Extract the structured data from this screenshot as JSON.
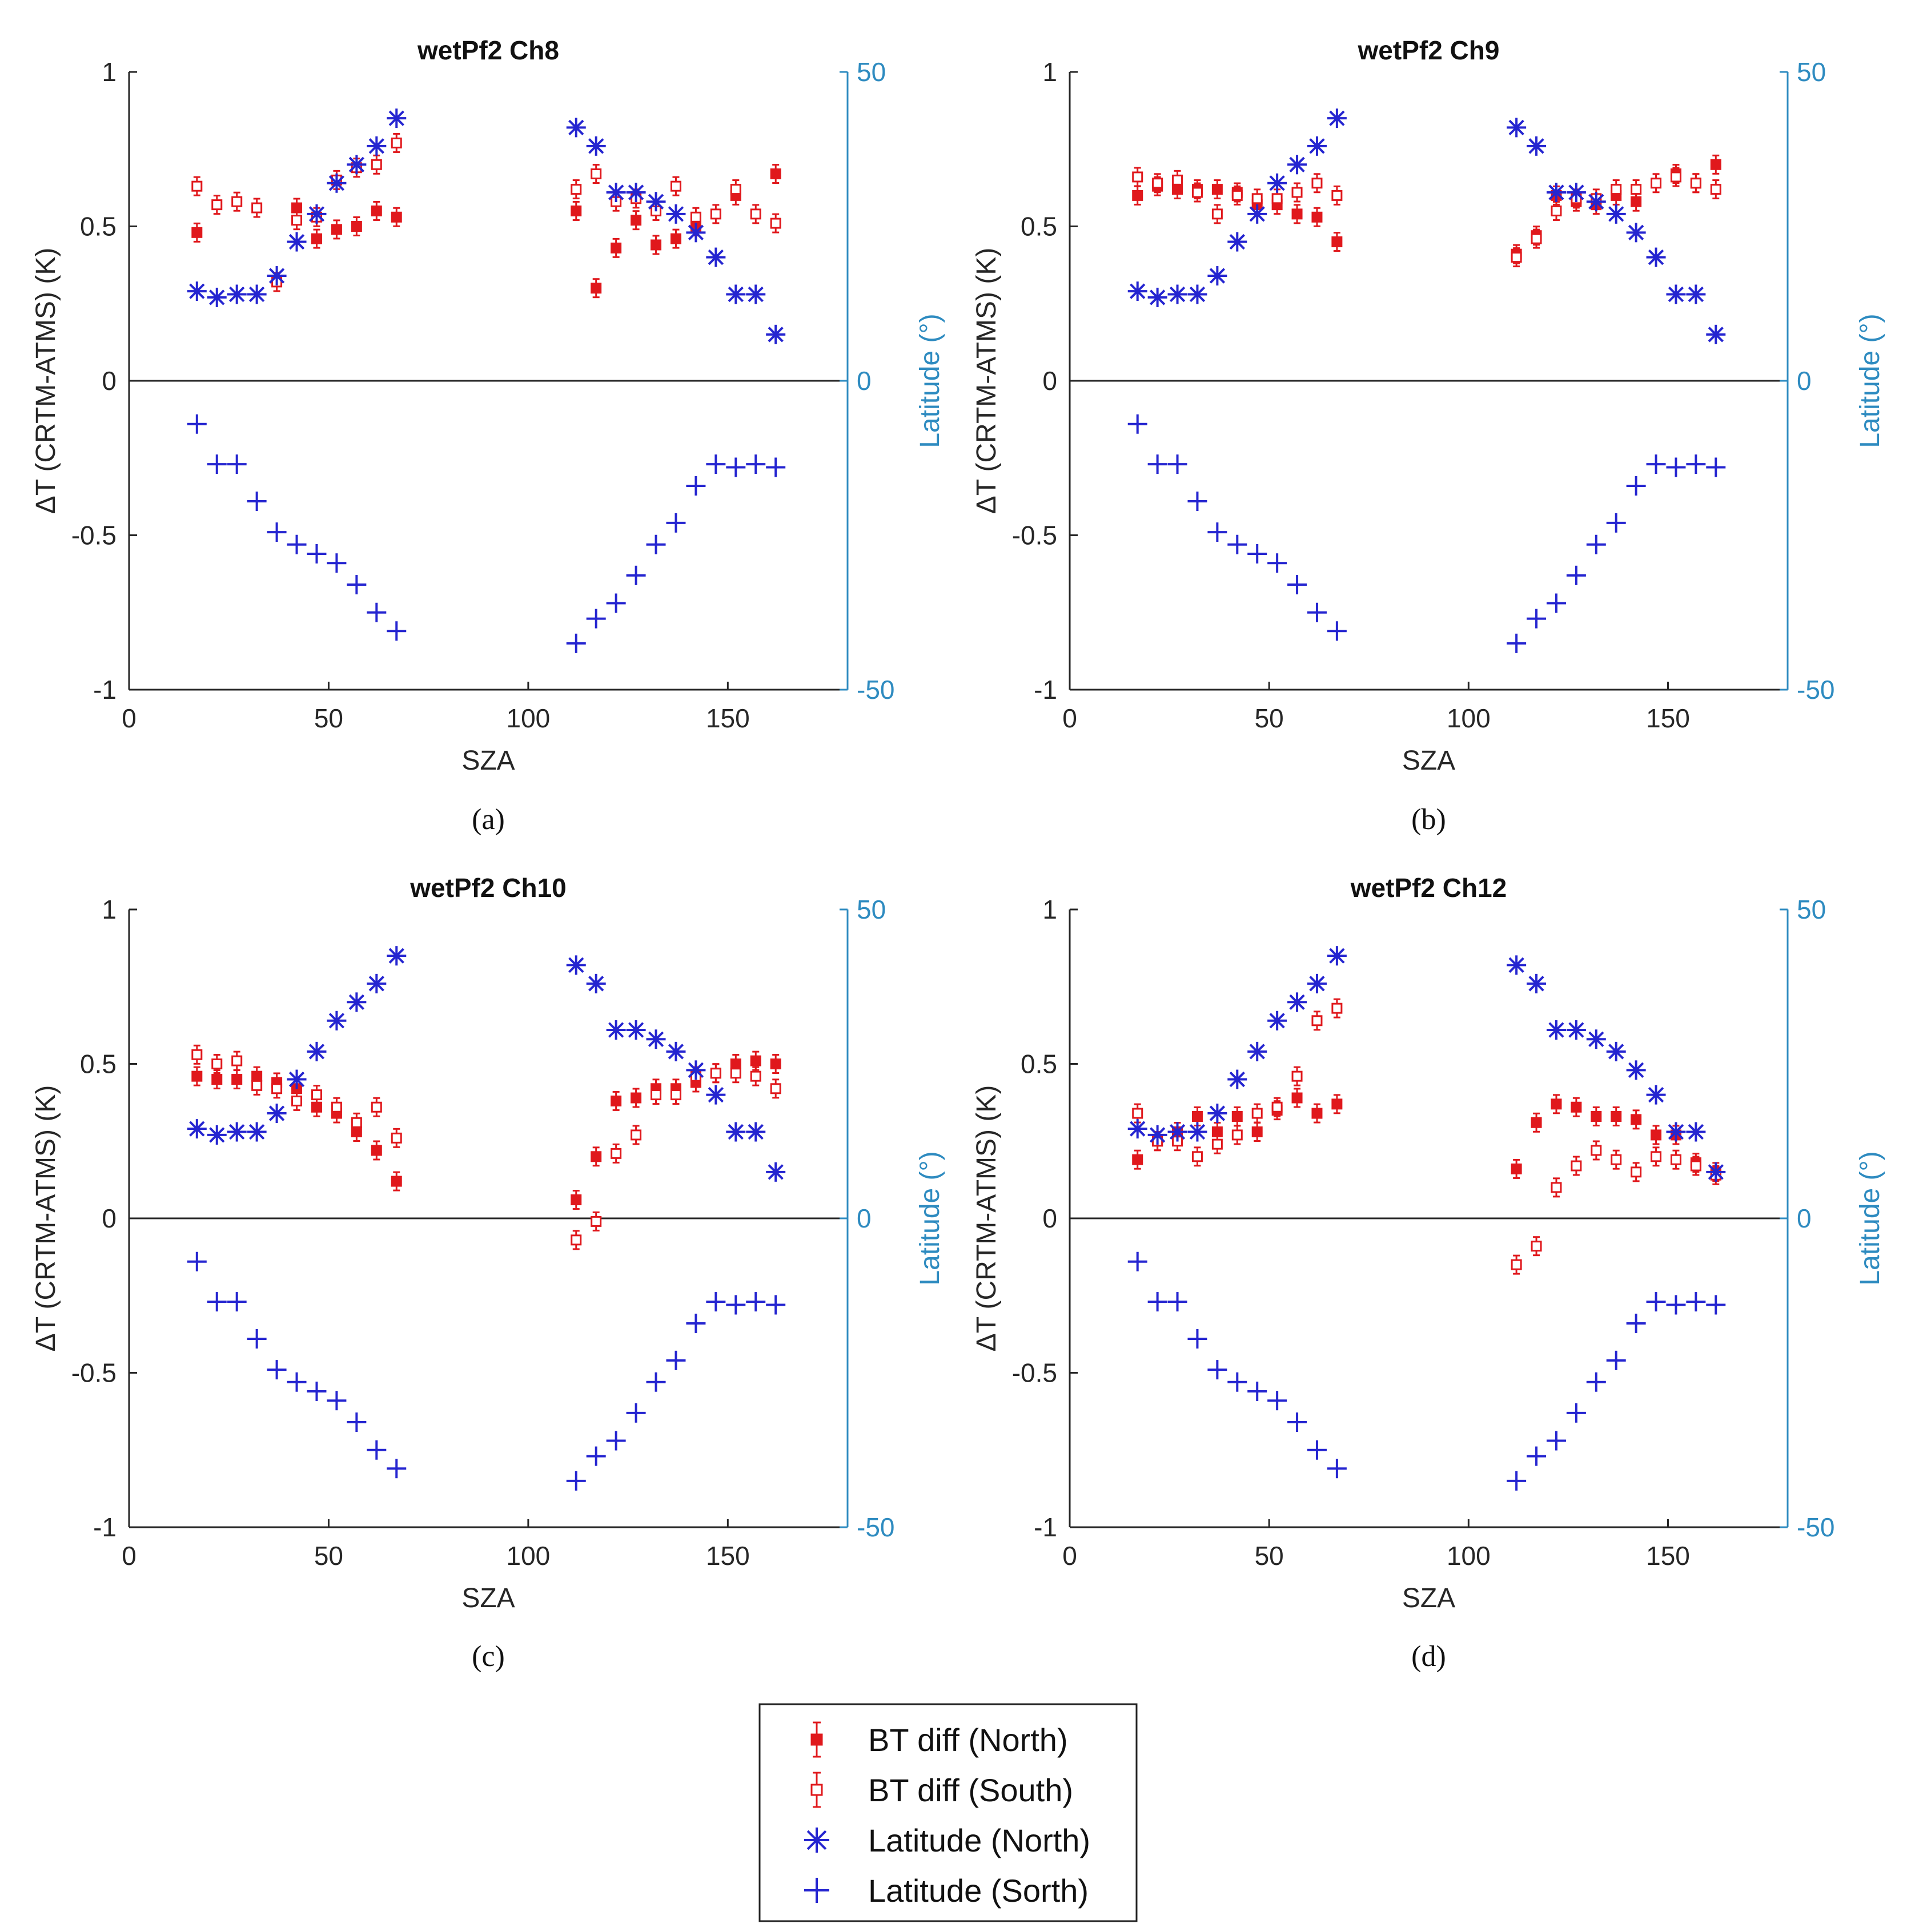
{
  "figure": {
    "legend": {
      "entries": [
        {
          "label": "BT diff (North)",
          "marker": "filled-square-errorbar",
          "color": "#e0181c"
        },
        {
          "label": "BT diff (South)",
          "marker": "open-square-errorbar",
          "color": "#e0181c"
        },
        {
          "label": "Latitude (North)",
          "marker": "asterisk",
          "color": "#2525d0"
        },
        {
          "label": "Latitude (Sorth)",
          "marker": "plus",
          "color": "#2525d0"
        }
      ],
      "placement": "bottom-center"
    },
    "colors": {
      "bt": "#e0181c",
      "lat": "#2525d0",
      "right_axis": "#2e8bc0",
      "axis": "#262626"
    }
  },
  "chart_data": [
    {
      "type": "scatter",
      "title": "wetPf2 Ch8",
      "caption": "(a)",
      "xlabel": "SZA",
      "ylabel": "ΔT (CRTM-ATMS) (K)",
      "y2label": "Latitude (°)",
      "xlim": [
        0,
        180
      ],
      "ylim": [
        -1,
        1
      ],
      "y2lim": [
        -50,
        50
      ],
      "xticks": [
        "0",
        "50",
        "100",
        "150"
      ],
      "yticks": [
        "-1",
        "-0.5",
        "0",
        "0.5",
        "1"
      ],
      "y2ticks": [
        "-50",
        "0",
        "50"
      ],
      "grid": false,
      "series": [
        {
          "name": "BT diff (North)",
          "axis": "left",
          "x": [
            17,
            42,
            47,
            52,
            57,
            62,
            67,
            112,
            117,
            122,
            127,
            132,
            137,
            142,
            152,
            162
          ],
          "y": [
            0.48,
            0.56,
            0.46,
            0.49,
            0.5,
            0.55,
            0.53,
            0.55,
            0.3,
            0.43,
            0.52,
            0.44,
            0.46,
            0.5,
            0.6,
            0.67
          ]
        },
        {
          "name": "BT diff (South)",
          "axis": "left",
          "x": [
            17,
            22,
            27,
            32,
            37,
            42,
            47,
            52,
            57,
            62,
            67,
            112,
            117,
            122,
            127,
            132,
            137,
            142,
            147,
            152,
            157,
            162
          ],
          "y": [
            0.63,
            0.57,
            0.58,
            0.56,
            0.32,
            0.52,
            0.53,
            0.65,
            0.69,
            0.7,
            0.77,
            0.62,
            0.67,
            0.58,
            0.59,
            0.55,
            0.63,
            0.53,
            0.54,
            0.62,
            0.54,
            0.51
          ]
        },
        {
          "name": "Latitude (North)",
          "axis": "right",
          "x": [
            17,
            22,
            27,
            32,
            37,
            42,
            47,
            52,
            57,
            62,
            67,
            112,
            117,
            122,
            127,
            132,
            137,
            142,
            147,
            152,
            157,
            162
          ],
          "y": [
            14.5,
            13.5,
            14,
            14,
            17,
            22.5,
            27,
            32,
            35,
            38,
            42.5,
            41,
            38,
            30.5,
            30.5,
            29,
            27,
            24,
            20,
            14,
            14,
            7.5
          ]
        },
        {
          "name": "Latitude (Sorth)",
          "axis": "right",
          "x": [
            17,
            22,
            27,
            32,
            37,
            42,
            47,
            52,
            57,
            62,
            67,
            112,
            117,
            122,
            127,
            132,
            137,
            142,
            147,
            152,
            157,
            162
          ],
          "y": [
            -7,
            -13.5,
            -13.5,
            -19.5,
            -24.5,
            -26.5,
            -28,
            -29.5,
            -33,
            -37.5,
            -40.5,
            -42.5,
            -38.5,
            -36,
            -31.5,
            -26.5,
            -23,
            -17,
            -13.5,
            -14,
            -13.5,
            -14
          ]
        }
      ]
    },
    {
      "type": "scatter",
      "title": "wetPf2 Ch9",
      "caption": "(b)",
      "xlabel": "SZA",
      "ylabel": "ΔT (CRTM-ATMS) (K)",
      "y2label": "Latitude (°)",
      "xlim": [
        0,
        180
      ],
      "ylim": [
        -1,
        1
      ],
      "y2lim": [
        -50,
        50
      ],
      "xticks": [
        "0",
        "50",
        "100",
        "150"
      ],
      "yticks": [
        "-1",
        "-0.5",
        "0",
        "0.5",
        "1"
      ],
      "y2ticks": [
        "-50",
        "0",
        "50"
      ],
      "grid": false,
      "series": [
        {
          "name": "BT diff (North)",
          "axis": "left",
          "x": [
            17,
            22,
            27,
            32,
            37,
            42,
            47,
            52,
            57,
            62,
            67,
            112,
            117,
            122,
            127,
            132,
            137,
            142,
            152,
            157,
            162
          ],
          "y": [
            0.6,
            0.63,
            0.62,
            0.62,
            0.62,
            0.61,
            0.57,
            0.57,
            0.54,
            0.53,
            0.45,
            0.41,
            0.47,
            0.6,
            0.58,
            0.57,
            0.6,
            0.58,
            0.67,
            0.64,
            0.7
          ]
        },
        {
          "name": "BT diff (South)",
          "axis": "left",
          "x": [
            17,
            22,
            27,
            32,
            37,
            42,
            47,
            52,
            57,
            62,
            67,
            112,
            117,
            122,
            127,
            132,
            137,
            142,
            147,
            152,
            157,
            162
          ],
          "y": [
            0.66,
            0.64,
            0.65,
            0.61,
            0.54,
            0.6,
            0.59,
            0.59,
            0.61,
            0.64,
            0.6,
            0.4,
            0.46,
            0.55,
            0.59,
            0.59,
            0.62,
            0.62,
            0.64,
            0.66,
            0.64,
            0.62
          ]
        },
        {
          "name": "Latitude (North)",
          "axis": "right",
          "x": [
            17,
            22,
            27,
            32,
            37,
            42,
            47,
            52,
            57,
            62,
            67,
            112,
            117,
            122,
            127,
            132,
            137,
            142,
            147,
            152,
            157,
            162
          ],
          "y": [
            14.5,
            13.5,
            14,
            14,
            17,
            22.5,
            27,
            32,
            35,
            38,
            42.5,
            41,
            38,
            30.5,
            30.5,
            29,
            27,
            24,
            20,
            14,
            14,
            7.5
          ]
        },
        {
          "name": "Latitude (Sorth)",
          "axis": "right",
          "x": [
            17,
            22,
            27,
            32,
            37,
            42,
            47,
            52,
            57,
            62,
            67,
            112,
            117,
            122,
            127,
            132,
            137,
            142,
            147,
            152,
            157,
            162
          ],
          "y": [
            -7,
            -13.5,
            -13.5,
            -19.5,
            -24.5,
            -26.5,
            -28,
            -29.5,
            -33,
            -37.5,
            -40.5,
            -42.5,
            -38.5,
            -36,
            -31.5,
            -26.5,
            -23,
            -17,
            -13.5,
            -14,
            -13.5,
            -14
          ]
        }
      ]
    },
    {
      "type": "scatter",
      "title": "wetPf2 Ch10",
      "caption": "(c)",
      "xlabel": "SZA",
      "ylabel": "ΔT (CRTM-ATMS) (K)",
      "y2label": "Latitude (°)",
      "xlim": [
        0,
        180
      ],
      "ylim": [
        -1,
        1
      ],
      "y2lim": [
        -50,
        50
      ],
      "xticks": [
        "0",
        "50",
        "100",
        "150"
      ],
      "yticks": [
        "-1",
        "-0.5",
        "0",
        "0.5",
        "1"
      ],
      "y2ticks": [
        "-50",
        "0",
        "50"
      ],
      "grid": false,
      "series": [
        {
          "name": "BT diff (North)",
          "axis": "left",
          "x": [
            17,
            22,
            27,
            32,
            37,
            42,
            47,
            52,
            57,
            62,
            67,
            112,
            117,
            122,
            127,
            132,
            137,
            142,
            147,
            152,
            157,
            162
          ],
          "y": [
            0.46,
            0.45,
            0.45,
            0.46,
            0.44,
            0.42,
            0.36,
            0.34,
            0.28,
            0.22,
            0.12,
            0.06,
            0.2,
            0.38,
            0.39,
            0.42,
            0.42,
            0.44,
            0.47,
            0.5,
            0.51,
            0.5
          ]
        },
        {
          "name": "BT diff (South)",
          "axis": "left",
          "x": [
            17,
            22,
            27,
            32,
            37,
            42,
            47,
            52,
            57,
            62,
            67,
            112,
            117,
            122,
            127,
            132,
            137,
            142,
            147,
            152,
            157,
            162
          ],
          "y": [
            0.53,
            0.5,
            0.51,
            0.43,
            0.42,
            0.38,
            0.4,
            0.36,
            0.31,
            0.36,
            0.26,
            -0.07,
            -0.01,
            0.21,
            0.27,
            0.4,
            0.4,
            0.46,
            0.47,
            0.47,
            0.46,
            0.42
          ]
        },
        {
          "name": "Latitude (North)",
          "axis": "right",
          "x": [
            17,
            22,
            27,
            32,
            37,
            42,
            47,
            52,
            57,
            62,
            67,
            112,
            117,
            122,
            127,
            132,
            137,
            142,
            147,
            152,
            157,
            162
          ],
          "y": [
            14.5,
            13.5,
            14,
            14,
            17,
            22.5,
            27,
            32,
            35,
            38,
            42.5,
            41,
            38,
            30.5,
            30.5,
            29,
            27,
            24,
            20,
            14,
            14,
            7.5
          ]
        },
        {
          "name": "Latitude (Sorth)",
          "axis": "right",
          "x": [
            17,
            22,
            27,
            32,
            37,
            42,
            47,
            52,
            57,
            62,
            67,
            112,
            117,
            122,
            127,
            132,
            137,
            142,
            147,
            152,
            157,
            162
          ],
          "y": [
            -7,
            -13.5,
            -13.5,
            -19.5,
            -24.5,
            -26.5,
            -28,
            -29.5,
            -33,
            -37.5,
            -40.5,
            -42.5,
            -38.5,
            -36,
            -31.5,
            -26.5,
            -23,
            -17,
            -13.5,
            -14,
            -13.5,
            -14
          ]
        }
      ]
    },
    {
      "type": "scatter",
      "title": "wetPf2 Ch12",
      "caption": "(d)",
      "xlabel": "SZA",
      "ylabel": "ΔT (CRTM-ATMS) (K)",
      "y2label": "Latitude (°)",
      "xlim": [
        0,
        180
      ],
      "ylim": [
        -1,
        1
      ],
      "y2lim": [
        -50,
        50
      ],
      "xticks": [
        "0",
        "50",
        "100",
        "150"
      ],
      "yticks": [
        "-1",
        "-0.5",
        "0",
        "0.5",
        "1"
      ],
      "y2ticks": [
        "-50",
        "0",
        "50"
      ],
      "grid": false,
      "series": [
        {
          "name": "BT diff (North)",
          "axis": "left",
          "x": [
            17,
            22,
            27,
            32,
            37,
            42,
            47,
            52,
            57,
            62,
            67,
            112,
            117,
            122,
            127,
            132,
            137,
            142,
            147,
            152,
            157,
            162
          ],
          "y": [
            0.19,
            0.25,
            0.28,
            0.33,
            0.28,
            0.33,
            0.28,
            0.35,
            0.39,
            0.34,
            0.37,
            0.16,
            0.31,
            0.37,
            0.36,
            0.33,
            0.33,
            0.32,
            0.27,
            0.27,
            0.18,
            0.15
          ]
        },
        {
          "name": "BT diff (South)",
          "axis": "left",
          "x": [
            17,
            22,
            27,
            32,
            37,
            42,
            47,
            52,
            57,
            62,
            67,
            112,
            117,
            122,
            127,
            132,
            137,
            142,
            147,
            152,
            157,
            162
          ],
          "y": [
            0.34,
            0.25,
            0.25,
            0.2,
            0.24,
            0.27,
            0.34,
            0.36,
            0.46,
            0.64,
            0.68,
            -0.15,
            -0.09,
            0.1,
            0.17,
            0.22,
            0.19,
            0.15,
            0.2,
            0.19,
            0.17,
            0.14
          ]
        },
        {
          "name": "Latitude (North)",
          "axis": "right",
          "x": [
            17,
            22,
            27,
            32,
            37,
            42,
            47,
            52,
            57,
            62,
            67,
            112,
            117,
            122,
            127,
            132,
            137,
            142,
            147,
            152,
            157,
            162
          ],
          "y": [
            14.5,
            13.5,
            14,
            14,
            17,
            22.5,
            27,
            32,
            35,
            38,
            42.5,
            41,
            38,
            30.5,
            30.5,
            29,
            27,
            24,
            20,
            14,
            14,
            7.5
          ]
        },
        {
          "name": "Latitude (Sorth)",
          "axis": "right",
          "x": [
            17,
            22,
            27,
            32,
            37,
            42,
            47,
            52,
            57,
            62,
            67,
            112,
            117,
            122,
            127,
            132,
            137,
            142,
            147,
            152,
            157,
            162
          ],
          "y": [
            -7,
            -13.5,
            -13.5,
            -19.5,
            -24.5,
            -26.5,
            -28,
            -29.5,
            -33,
            -37.5,
            -40.5,
            -42.5,
            -38.5,
            -36,
            -31.5,
            -26.5,
            -23,
            -17,
            -13.5,
            -14,
            -13.5,
            -14
          ]
        }
      ]
    }
  ]
}
